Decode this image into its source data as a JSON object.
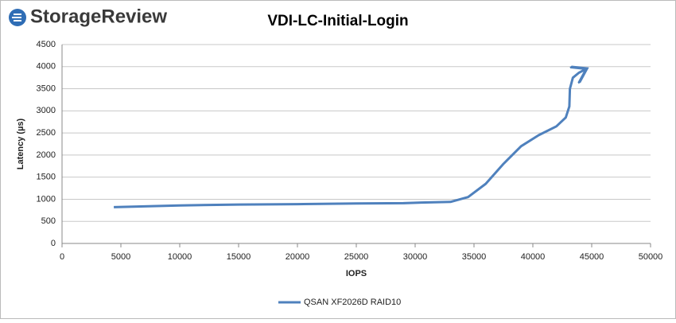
{
  "logo": "StorageReview",
  "chart_data": {
    "type": "line",
    "title": "VDI-LC-Initial-Login",
    "x_label": "IOPS",
    "y_label": "Latency (µs)",
    "x": [
      4400,
      10000,
      15000,
      20000,
      25000,
      29000,
      30500,
      33000,
      34500,
      36000,
      37500,
      39000,
      40500,
      42000,
      42800,
      43100,
      43150,
      43400,
      43900,
      44400
    ],
    "series": [
      {
        "name": "QSAN XF2026D RAID10",
        "color": "#4f81bd",
        "values": [
          820,
          860,
          880,
          890,
          905,
          910,
          925,
          940,
          1050,
          1350,
          1800,
          2200,
          2450,
          2650,
          2850,
          3100,
          3500,
          3750,
          3860,
          3930
        ]
      }
    ],
    "xlim": [
      0,
      50000
    ],
    "xticks": [
      0,
      5000,
      10000,
      15000,
      20000,
      25000,
      30000,
      35000,
      40000,
      45000,
      50000
    ],
    "ylim": [
      0,
      4500
    ],
    "yticks": [
      0,
      500,
      1000,
      1500,
      2000,
      2500,
      3000,
      3500,
      4000,
      4500
    ],
    "grid": true,
    "legend": "bottom"
  }
}
